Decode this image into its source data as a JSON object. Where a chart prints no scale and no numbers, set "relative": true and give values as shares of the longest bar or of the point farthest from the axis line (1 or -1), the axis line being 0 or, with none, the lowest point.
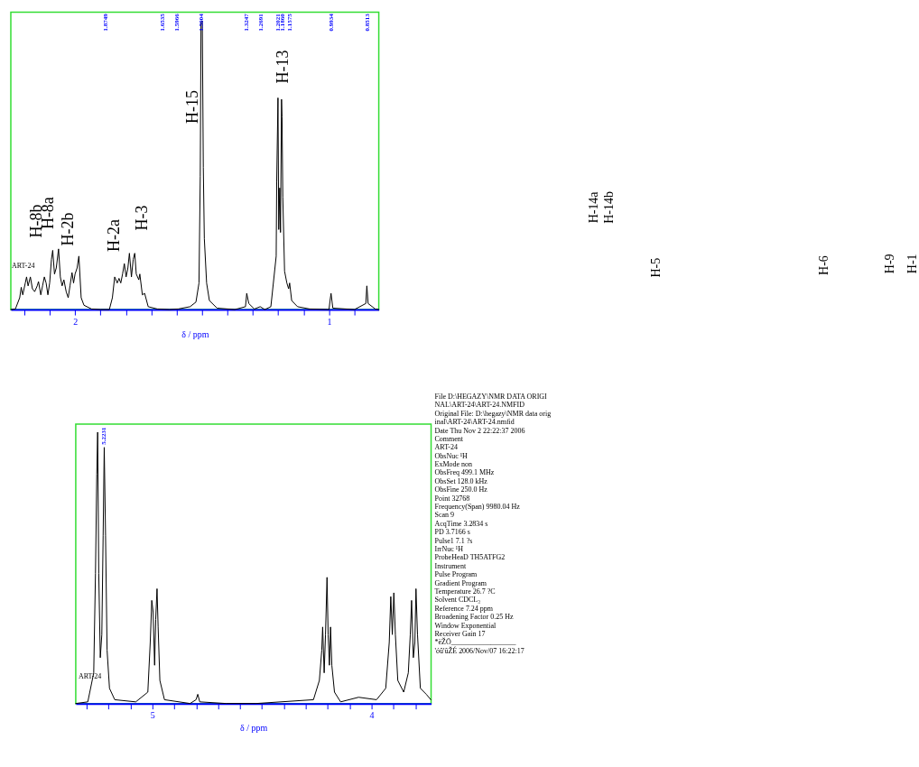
{
  "chart_data": [
    {
      "type": "line",
      "relative": true,
      "xlabel": "δ / ppm",
      "grid": false,
      "marker": "none",
      "line_style": "solid",
      "xlim": [
        2.253,
        0.804
      ],
      "xticks": [
        {
          "value": 2.2,
          "label": null
        },
        {
          "value": 2.1,
          "label": null
        },
        2,
        {
          "value": 1.9,
          "label": null
        },
        {
          "value": 1.8,
          "label": null
        },
        {
          "value": 1.7,
          "label": null
        },
        {
          "value": 1.6,
          "label": null
        },
        {
          "value": 1.5,
          "label": null
        },
        {
          "value": 1.4,
          "label": null
        },
        {
          "value": 1.3,
          "label": null
        },
        {
          "value": 1.2,
          "label": null
        },
        {
          "value": 1.1,
          "label": null
        },
        1,
        {
          "value": 0.9,
          "label": null
        }
      ],
      "series": [
        {
          "color": "#000000",
          "x": [
            2.253,
            2.235,
            2.218,
            2.212,
            2.206,
            2.196,
            2.191,
            2.185,
            2.176,
            2.168,
            2.159,
            2.149,
            2.144,
            2.135,
            2.128,
            2.121,
            2.114,
            2.107,
            2.1,
            2.093,
            2.088,
            2.081,
            2.074,
            2.065,
            2.058,
            2.051,
            2.044,
            2.035,
            2.027,
            2.02,
            2.012,
            2.006,
            2.0,
            1.992,
            1.985,
            1.976,
            1.965,
            1.935,
            1.9,
            1.865,
            1.853,
            1.844,
            1.834,
            1.827,
            1.82,
            1.813,
            1.806,
            1.799,
            1.792,
            1.786,
            1.778,
            1.771,
            1.765,
            1.759,
            1.749,
            1.745,
            1.735,
            1.726,
            1.712,
            1.676,
            1.629,
            1.594,
            1.547,
            1.524,
            1.512,
            1.507,
            1.504,
            1.499,
            1.495,
            1.491,
            1.482,
            1.471,
            1.441,
            1.371,
            1.329,
            1.324,
            1.316,
            1.294,
            1.271,
            1.253,
            1.229,
            1.208,
            1.206,
            1.201,
            1.198,
            1.194,
            1.191,
            1.187,
            1.185,
            1.182,
            1.175,
            1.166,
            1.159,
            1.155,
            1.147,
            1.124,
            1.076,
            1.0,
            0.996,
            0.992,
            0.985,
            0.9,
            0.855,
            0.851,
            0.846,
            0.818,
            0.804
          ],
          "values": [
            0,
            0.002,
            0.041,
            0.077,
            0.051,
            0.092,
            0.113,
            0.082,
            0.113,
            0.072,
            0.062,
            0.082,
            0.097,
            0.051,
            0.082,
            0.113,
            0.092,
            0.051,
            0.092,
            0.174,
            0.205,
            0.123,
            0.144,
            0.21,
            0.113,
            0.082,
            0.103,
            0.062,
            0.041,
            0.082,
            0.128,
            0.092,
            0.123,
            0.144,
            0.185,
            0.041,
            0.015,
            0.002,
            0,
            0,
            0.041,
            0.113,
            0.092,
            0.108,
            0.092,
            0.123,
            0.159,
            0.113,
            0.144,
            0.195,
            0.113,
            0.174,
            0.195,
            0.123,
            0.103,
            0.123,
            0.051,
            0.056,
            0.01,
            0.002,
            0,
            0.002,
            0.01,
            0.026,
            0.092,
            0.462,
            0.995,
            1.0,
            0.492,
            0.246,
            0.092,
            0.031,
            0.005,
            0,
            0.01,
            0.056,
            0.021,
            0.002,
            0.01,
            0,
            0.01,
            0.185,
            0.441,
            0.733,
            0.277,
            0.421,
            0.267,
            0.728,
            0.667,
            0.39,
            0.133,
            0.092,
            0.072,
            0.092,
            0.031,
            0.01,
            0.002,
            0,
            0.031,
            0.056,
            0.005,
            0,
            0.021,
            0.082,
            0.021,
            0.002,
            0
          ]
        }
      ],
      "annotations": [
        "1.8749",
        "1.6535",
        "1.5966",
        "1.5004",
        "1.3247",
        "1.2691",
        "1.2021",
        "1.1860",
        "1.1575",
        "0.9934",
        "0.8513",
        "ART-24",
        "H-8b",
        "H-8a",
        "H-2b",
        "H-2a",
        "H-3",
        "H-15",
        "H-13",
        "H-14a",
        "H-14b",
        "H-5",
        "H-6",
        "H-9",
        "H-1"
      ]
    },
    {
      "type": "line",
      "relative": true,
      "xlabel": "δ / ppm",
      "grid": false,
      "marker": "none",
      "line_style": "solid",
      "xlim": [
        5.35,
        3.728
      ],
      "xticks": [
        {
          "value": 5.3,
          "label": null
        },
        {
          "value": 5.2,
          "label": null
        },
        {
          "value": 5.1,
          "label": null
        },
        5,
        {
          "value": 4.9,
          "label": null
        },
        {
          "value": 4.8,
          "label": null
        },
        {
          "value": 4.7,
          "label": null
        },
        {
          "value": 4.6,
          "label": null
        },
        {
          "value": 4.5,
          "label": null
        },
        {
          "value": 4.4,
          "label": null
        },
        {
          "value": 4.3,
          "label": null
        },
        {
          "value": 4.2,
          "label": null
        },
        {
          "value": 4.1,
          "label": null
        },
        4,
        {
          "value": 3.9,
          "label": null
        },
        {
          "value": 3.8,
          "label": null
        }
      ],
      "series": [
        {
          "color": "#000000",
          "x": [
            5.35,
            5.295,
            5.268,
            5.26,
            5.254,
            5.25,
            5.245,
            5.238,
            5.231,
            5.225,
            5.22,
            5.214,
            5.207,
            5.196,
            5.172,
            5.076,
            5.021,
            5.01,
            5.003,
            4.997,
            4.99,
            4.985,
            4.979,
            4.974,
            4.966,
            4.945,
            4.828,
            4.801,
            4.793,
            4.784,
            4.663,
            4.526,
            4.265,
            4.238,
            4.227,
            4.223,
            4.216,
            4.21,
            4.203,
            4.198,
            4.192,
            4.187,
            4.181,
            4.169,
            4.141,
            4.059,
            3.977,
            3.935,
            3.919,
            3.912,
            3.905,
            3.898,
            3.891,
            3.88,
            3.853,
            3.832,
            3.823,
            3.817,
            3.809,
            3.802,
            3.797,
            3.79,
            3.777,
            3.75,
            3.729
          ],
          "values": [
            0,
            0.006,
            0.113,
            0.479,
            0.845,
            1.0,
            0.479,
            0.169,
            0.254,
            0.62,
            0.944,
            0.62,
            0.197,
            0.056,
            0.014,
            0.006,
            0.042,
            0.225,
            0.38,
            0.338,
            0.141,
            0.31,
            0.423,
            0.282,
            0.085,
            0.014,
            0,
            0.014,
            0.034,
            0.006,
            0,
            0,
            0.014,
            0.085,
            0.197,
            0.282,
            0.113,
            0.254,
            0.465,
            0.254,
            0.141,
            0.282,
            0.141,
            0.042,
            0.006,
            0.023,
            0.014,
            0.056,
            0.225,
            0.394,
            0.254,
            0.408,
            0.254,
            0.085,
            0.042,
            0.113,
            0.254,
            0.38,
            0.169,
            0.225,
            0.423,
            0.254,
            0.056,
            0.034,
            0.014
          ]
        }
      ],
      "annotations": [
        "5.2231",
        "ART-24",
        "File  D:\\HEGAZY\\NMR DATA ORIGI",
        "    NAL\\ART-24\\ART-24.NMFID",
        "Original File:  D:\\hegazy\\NMR data orig",
        "    inal\\ART-24\\ART-24.nmfid",
        "Date   Thu Nov  2 22:22:37 2006",
        "Comment",
        "    ART-24",
        "ObsNuc            ¹H",
        "ExMode            non",
        "ObsFreq           499.1 MHz",
        "ObsSet            128.0 kHz",
        "ObsFine           250.0 Hz",
        "Point             32768",
        "Frequency(Span)   9980.04 Hz",
        "Scan              9",
        "AcqTime           3.2834 s",
        "PD                3.7166 s",
        "Pulse1            7.1 ?s",
        "IrrNuc            ¹H",
        "ProbeHeaD    TH5ATFG2",
        "Instrument",
        "Pulse Program",
        "Gradient Program",
        "Temperature       26.7 ?C",
        "Solvent           CDCL₃",
        "Reference         7.24 ppm",
        "Broadening Factor 0.25 Hz",
        "Window       Exponential",
        "Receiver Gain     17",
        "*ëŽÖ__________________",
        "'óû'ûŽÉ   2006/Nov/07 16:22:17"
      ]
    }
  ]
}
